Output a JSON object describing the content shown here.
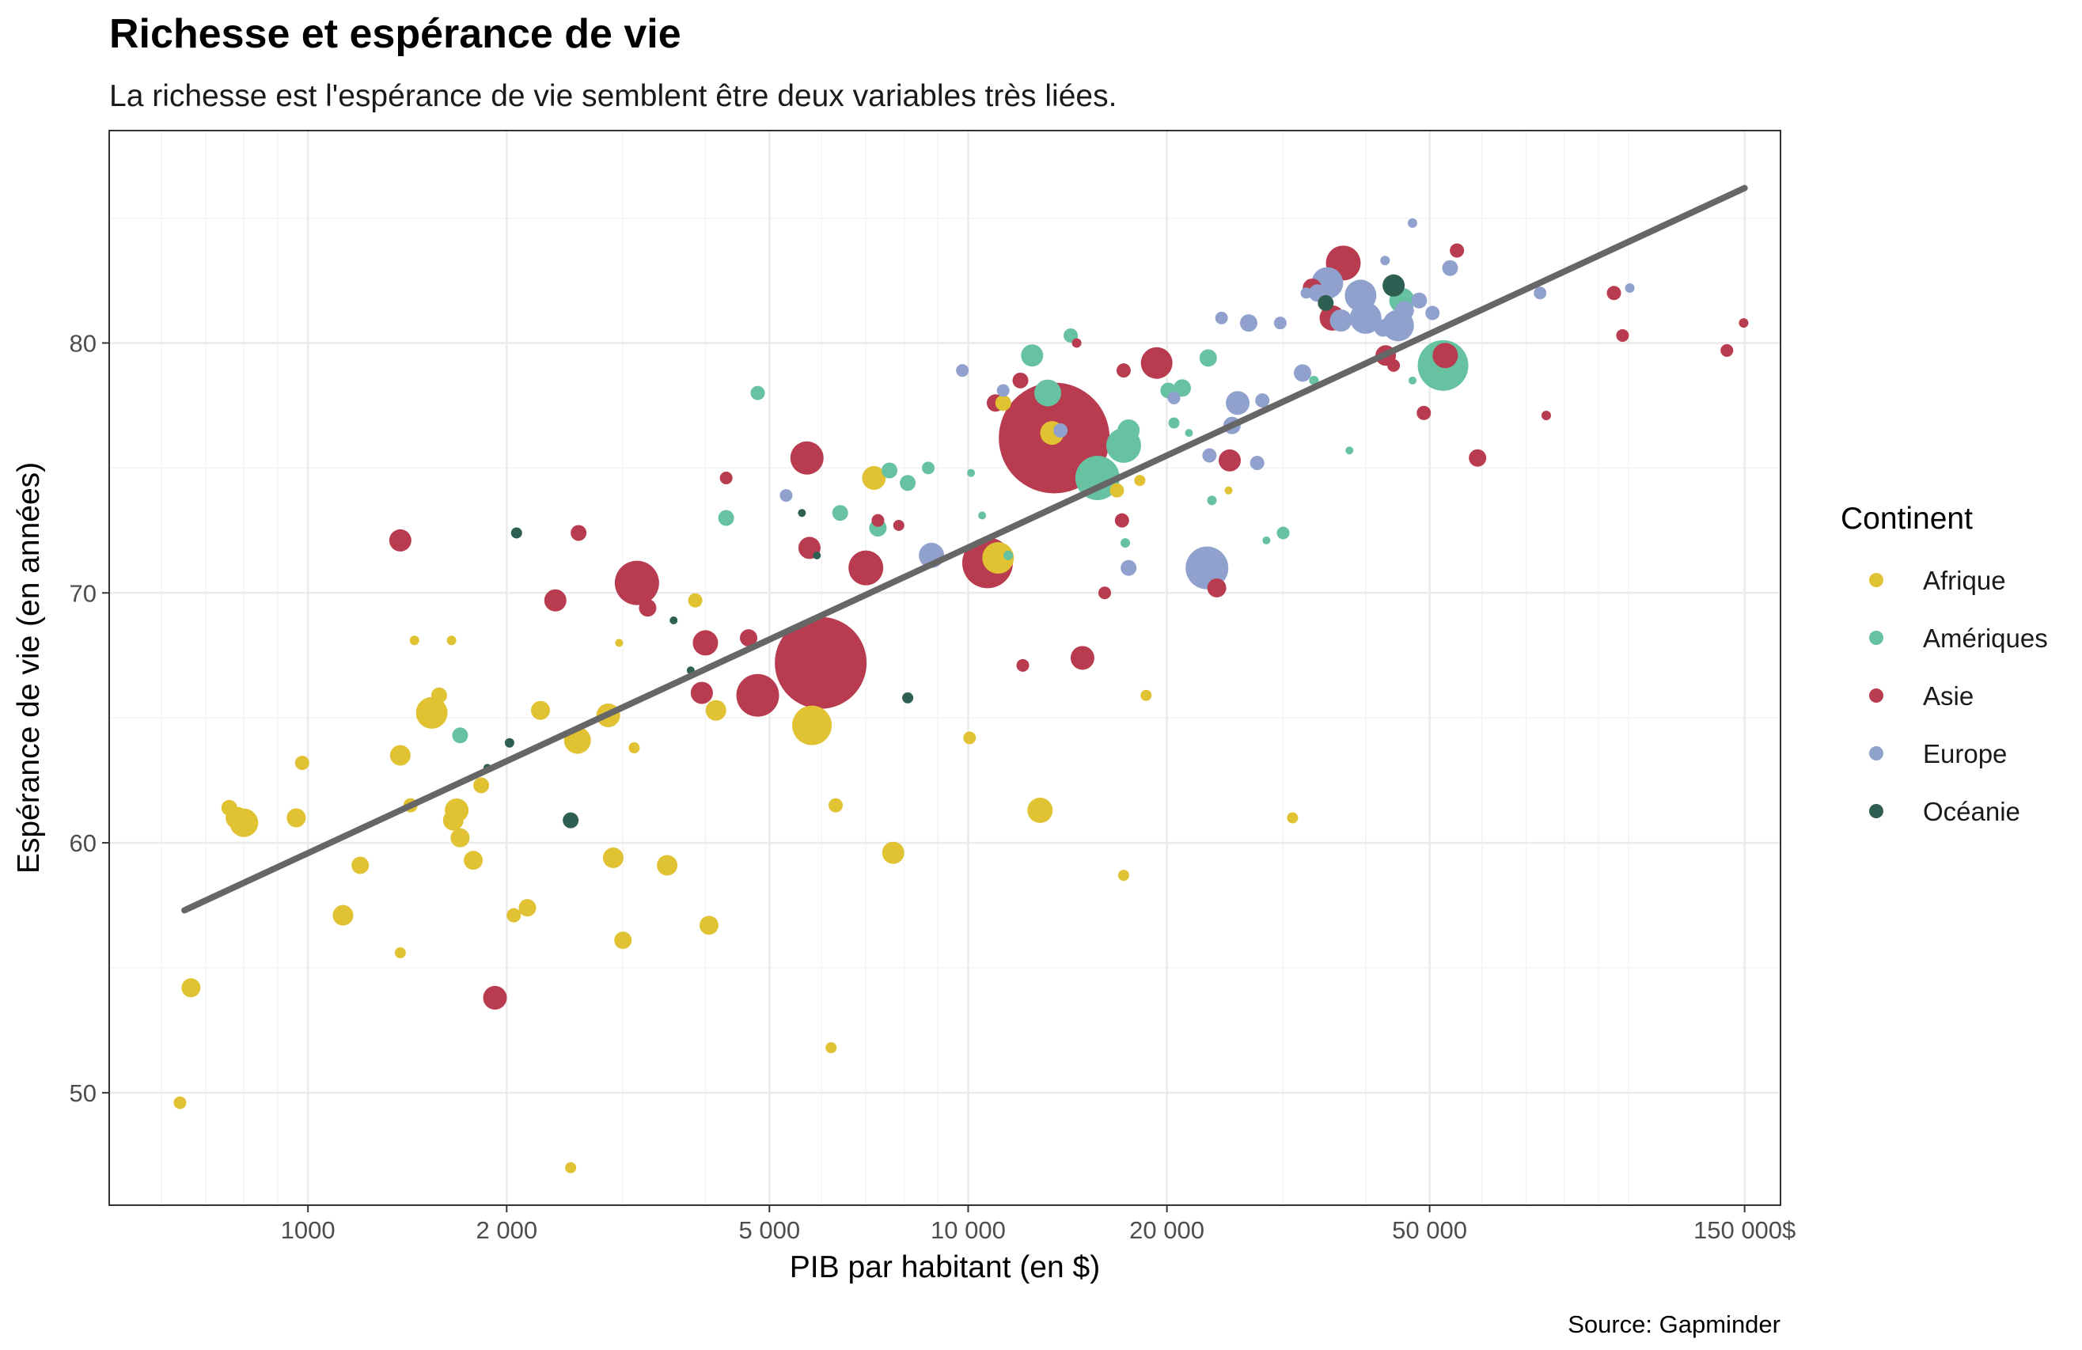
{
  "chart_data": {
    "type": "scatter",
    "title": "Richesse et espérance de vie",
    "subtitle": "La richesse est l'espérance de vie semblent être deux variables très liées.",
    "xlabel": "PIB par habitant (en $)",
    "ylabel": "Espérance de vie (en années)",
    "caption": "Source: Gapminder",
    "x_scale": "log10",
    "xlim": [
      500,
      170000
    ],
    "ylim": [
      45.5,
      88.5
    ],
    "x_ticks": [
      {
        "value": 1000,
        "label": "1000"
      },
      {
        "value": 2000,
        "label": "2 000"
      },
      {
        "value": 5000,
        "label": "5 000"
      },
      {
        "value": 10000,
        "label": "10 000"
      },
      {
        "value": 20000,
        "label": "20 000"
      },
      {
        "value": 50000,
        "label": "50 000"
      },
      {
        "value": 150000,
        "label": "150 000$"
      }
    ],
    "y_ticks": [
      {
        "value": 50,
        "label": "50"
      },
      {
        "value": 60,
        "label": "60"
      },
      {
        "value": 70,
        "label": "70"
      },
      {
        "value": 80,
        "label": "80"
      }
    ],
    "grid": true,
    "legend": {
      "title": "Continent",
      "position": "right",
      "entries": [
        {
          "key": "afrique",
          "label": "Afrique",
          "color": "#E1C233"
        },
        {
          "key": "ameriques",
          "label": "Amériques",
          "color": "#66C2A0"
        },
        {
          "key": "asie",
          "label": "Asie",
          "color": "#B83B50"
        },
        {
          "key": "europe",
          "label": "Europe",
          "color": "#8FA1CC"
        },
        {
          "key": "oceanie",
          "label": "Océanie",
          "color": "#2F5F52"
        }
      ]
    },
    "trend_line": {
      "color": "#666666",
      "points": [
        [
          650,
          57.3
        ],
        [
          150000,
          86.2
        ]
      ]
    },
    "series": [
      {
        "name": "Afrique",
        "color": "#E1C233",
        "points": [
          [
            640,
            49.6,
            8
          ],
          [
            665,
            54.2,
            12
          ],
          [
            760,
            61.4,
            10
          ],
          [
            800,
            60.8,
            18
          ],
          [
            780,
            61.0,
            14
          ],
          [
            960,
            61.0,
            12
          ],
          [
            980,
            63.2,
            9
          ],
          [
            1130,
            57.1,
            13
          ],
          [
            1200,
            59.1,
            11
          ],
          [
            1380,
            55.6,
            7
          ],
          [
            1380,
            63.5,
            13
          ],
          [
            1430,
            61.5,
            9
          ],
          [
            1450,
            68.1,
            6
          ],
          [
            1540,
            65.2,
            20
          ],
          [
            1580,
            65.9,
            10
          ],
          [
            1650,
            68.1,
            6
          ],
          [
            1660,
            60.9,
            13
          ],
          [
            1680,
            61.3,
            15
          ],
          [
            1700,
            60.2,
            12
          ],
          [
            1780,
            59.3,
            12
          ],
          [
            1830,
            62.3,
            10
          ],
          [
            2050,
            57.1,
            9
          ],
          [
            2150,
            57.4,
            11
          ],
          [
            2250,
            65.3,
            12
          ],
          [
            2500,
            47.0,
            7
          ],
          [
            2560,
            64.1,
            17
          ],
          [
            2850,
            65.1,
            15
          ],
          [
            2900,
            59.4,
            13
          ],
          [
            2960,
            68.0,
            5
          ],
          [
            3000,
            56.1,
            11
          ],
          [
            3120,
            63.8,
            7
          ],
          [
            3500,
            59.1,
            13
          ],
          [
            3860,
            69.7,
            9
          ],
          [
            4050,
            56.7,
            12
          ],
          [
            4150,
            65.3,
            13
          ],
          [
            5800,
            64.7,
            25
          ],
          [
            6200,
            51.8,
            7
          ],
          [
            6300,
            61.5,
            9
          ],
          [
            7200,
            74.6,
            15
          ],
          [
            7700,
            59.6,
            14
          ],
          [
            10050,
            64.2,
            8
          ],
          [
            11100,
            71.4,
            20
          ],
          [
            11300,
            77.6,
            10
          ],
          [
            12850,
            61.3,
            16
          ],
          [
            13400,
            76.4,
            15
          ],
          [
            16800,
            74.1,
            9
          ],
          [
            17200,
            58.7,
            7
          ],
          [
            18200,
            74.5,
            7
          ],
          [
            18600,
            65.9,
            7
          ],
          [
            24800,
            74.1,
            5
          ],
          [
            31000,
            61.0,
            7
          ]
        ]
      },
      {
        "name": "Amériques",
        "color": "#66C2A0",
        "points": [
          [
            1700,
            64.3,
            10
          ],
          [
            4300,
            73.0,
            10
          ],
          [
            4800,
            78.0,
            9
          ],
          [
            6400,
            73.2,
            10
          ],
          [
            7300,
            72.6,
            11
          ],
          [
            7600,
            74.9,
            10
          ],
          [
            8100,
            74.4,
            10
          ],
          [
            8700,
            75.0,
            8
          ],
          [
            10100,
            74.8,
            5
          ],
          [
            10500,
            73.1,
            5
          ],
          [
            11500,
            71.5,
            6
          ],
          [
            12500,
            79.5,
            14
          ],
          [
            13200,
            78.0,
            17
          ],
          [
            14300,
            80.3,
            9
          ],
          [
            15700,
            74.6,
            28
          ],
          [
            17200,
            75.9,
            22
          ],
          [
            17300,
            72.0,
            6
          ],
          [
            17500,
            76.5,
            14
          ],
          [
            20100,
            78.1,
            10
          ],
          [
            20500,
            76.8,
            7
          ],
          [
            21100,
            78.2,
            11
          ],
          [
            21600,
            76.4,
            5
          ],
          [
            23100,
            79.4,
            11
          ],
          [
            23400,
            73.7,
            6
          ],
          [
            28300,
            72.1,
            5
          ],
          [
            30000,
            72.4,
            8
          ],
          [
            33400,
            78.5,
            6
          ],
          [
            37800,
            75.7,
            5
          ],
          [
            45400,
            81.7,
            16
          ],
          [
            47100,
            78.5,
            5
          ],
          [
            52400,
            79.1,
            32
          ]
        ]
      },
      {
        "name": "Asie",
        "color": "#B83B50",
        "points": [
          [
            1380,
            72.1,
            14
          ],
          [
            1920,
            53.8,
            15
          ],
          [
            2370,
            69.7,
            14
          ],
          [
            2570,
            72.4,
            10
          ],
          [
            3150,
            70.4,
            28
          ],
          [
            3270,
            69.4,
            11
          ],
          [
            3950,
            66.0,
            14
          ],
          [
            4000,
            68.0,
            16
          ],
          [
            4300,
            74.6,
            8
          ],
          [
            4650,
            68.2,
            11
          ],
          [
            4800,
            65.9,
            27
          ],
          [
            5700,
            75.4,
            21
          ],
          [
            5750,
            71.8,
            14
          ],
          [
            5980,
            67.2,
            58
          ],
          [
            7000,
            71.0,
            22
          ],
          [
            7300,
            72.9,
            8
          ],
          [
            7850,
            72.7,
            7
          ],
          [
            10700,
            71.2,
            32
          ],
          [
            11000,
            77.6,
            11
          ],
          [
            12000,
            78.5,
            10
          ],
          [
            12100,
            67.1,
            8
          ],
          [
            13500,
            76.2,
            70
          ],
          [
            14600,
            80.0,
            6
          ],
          [
            14900,
            67.4,
            15
          ],
          [
            16100,
            70.0,
            8
          ],
          [
            17100,
            72.9,
            9
          ],
          [
            17200,
            78.9,
            9
          ],
          [
            19300,
            79.2,
            20
          ],
          [
            23800,
            70.2,
            12
          ],
          [
            24900,
            75.3,
            14
          ],
          [
            33200,
            82.2,
            12
          ],
          [
            35600,
            81.0,
            16
          ],
          [
            37000,
            83.2,
            22
          ],
          [
            42900,
            79.5,
            13
          ],
          [
            44100,
            79.1,
            8
          ],
          [
            49000,
            77.2,
            9
          ],
          [
            52800,
            79.5,
            16
          ],
          [
            55000,
            83.7,
            9
          ],
          [
            59100,
            75.4,
            11
          ],
          [
            75100,
            77.1,
            6
          ],
          [
            95100,
            82.0,
            9
          ],
          [
            98000,
            80.3,
            8
          ],
          [
            141000,
            79.7,
            8
          ],
          [
            149500,
            80.8,
            6
          ]
        ]
      },
      {
        "name": "Europe",
        "color": "#8FA1CC",
        "points": [
          [
            5300,
            73.9,
            8
          ],
          [
            8800,
            71.5,
            16
          ],
          [
            9800,
            78.9,
            8
          ],
          [
            11300,
            78.1,
            8
          ],
          [
            13800,
            76.5,
            9
          ],
          [
            17500,
            71.0,
            10
          ],
          [
            20500,
            77.8,
            8
          ],
          [
            23000,
            71.0,
            27
          ],
          [
            23200,
            75.5,
            9
          ],
          [
            24200,
            81.0,
            8
          ],
          [
            25100,
            76.7,
            11
          ],
          [
            25600,
            77.6,
            15
          ],
          [
            26600,
            80.8,
            11
          ],
          [
            27400,
            75.2,
            9
          ],
          [
            27900,
            77.7,
            9
          ],
          [
            29700,
            80.8,
            8
          ],
          [
            32100,
            78.8,
            11
          ],
          [
            32500,
            82.0,
            7
          ],
          [
            33800,
            82.0,
            11
          ],
          [
            35000,
            82.4,
            20
          ],
          [
            36700,
            80.9,
            14
          ],
          [
            39300,
            81.9,
            20
          ],
          [
            40000,
            81.0,
            20
          ],
          [
            42500,
            80.6,
            11
          ],
          [
            42800,
            83.3,
            6
          ],
          [
            44800,
            80.7,
            20
          ],
          [
            45800,
            81.3,
            12
          ],
          [
            47100,
            84.8,
            6
          ],
          [
            48200,
            81.7,
            10
          ],
          [
            50500,
            81.2,
            9
          ],
          [
            53700,
            83.0,
            10
          ],
          [
            73500,
            82.0,
            8
          ],
          [
            100500,
            82.2,
            6
          ]
        ]
      },
      {
        "name": "Océanie",
        "color": "#2F5F52",
        "points": [
          [
            1870,
            63.0,
            5
          ],
          [
            2020,
            64.0,
            6
          ],
          [
            2070,
            72.4,
            7
          ],
          [
            2500,
            60.9,
            10
          ],
          [
            3580,
            68.9,
            5
          ],
          [
            3800,
            66.9,
            5
          ],
          [
            5600,
            73.2,
            5
          ],
          [
            5900,
            71.5,
            5
          ],
          [
            8100,
            65.8,
            7
          ],
          [
            34800,
            81.6,
            10
          ],
          [
            44100,
            82.3,
            14
          ]
        ]
      }
    ]
  }
}
